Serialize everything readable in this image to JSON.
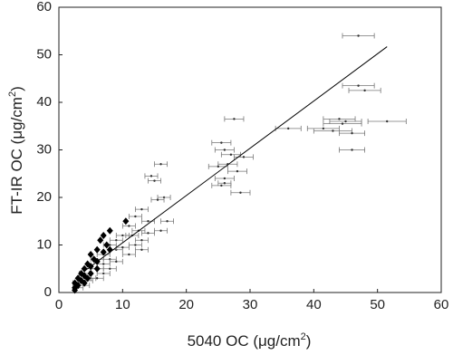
{
  "chart_data": {
    "type": "scatter",
    "x_label": {
      "text": "5040 OC (μg/cm",
      "sup": "2",
      "end": ")"
    },
    "y_label": {
      "text": "FT-IR OC (μg/cm",
      "sup": "2",
      "end": ")"
    },
    "xlim": [
      0,
      60
    ],
    "ylim": [
      0,
      60
    ],
    "xticks": [
      0,
      10,
      20,
      30,
      40,
      50,
      60
    ],
    "yticks": [
      0,
      10,
      20,
      30,
      40,
      50,
      60
    ],
    "grid": false,
    "series": [
      {
        "marker": "dot",
        "color": "#333333",
        "x": [
          47,
          47,
          48,
          44,
          44.5,
          45,
          51.5,
          41.5,
          43,
          46,
          46,
          36,
          27.5,
          25.5,
          26,
          27,
          29,
          26.5,
          25,
          28,
          26,
          28.5,
          25.5,
          26,
          16,
          14.5,
          15,
          16.5,
          15.5,
          13,
          12,
          14,
          17,
          11,
          12.5,
          10,
          9,
          11.5,
          14,
          16,
          8,
          9,
          7,
          10,
          12,
          13,
          6,
          8,
          5,
          6,
          7,
          4,
          5,
          3,
          4,
          3,
          6,
          8,
          11,
          13,
          7,
          9,
          4.5
        ],
        "values": [
          54,
          43.5,
          42.5,
          36.5,
          35.5,
          36,
          36,
          34.5,
          34,
          33.5,
          30,
          34.5,
          36.5,
          31.5,
          30,
          29,
          28.5,
          27,
          26.5,
          25.5,
          24,
          21,
          22.5,
          23,
          27,
          24.5,
          23.5,
          20,
          19.5,
          17.5,
          16,
          15,
          15,
          14,
          13,
          12,
          11,
          12,
          12.5,
          13,
          10,
          9,
          8,
          9.5,
          10,
          11,
          7,
          7,
          5,
          5,
          6,
          4,
          3,
          2,
          1.5,
          1,
          3,
          5,
          8,
          9,
          4,
          6.5,
          2.5
        ],
        "xerr": [
          2.5,
          2.5,
          2.5,
          2.5,
          3,
          2.5,
          3,
          2.5,
          3,
          2,
          2,
          2,
          1.5,
          1.5,
          1.5,
          1.5,
          1.5,
          1.5,
          1.5,
          1.5,
          1.5,
          1.5,
          1.5,
          1,
          1,
          1,
          1,
          1,
          1,
          1,
          1,
          1,
          1,
          1,
          1,
          1,
          1,
          1,
          1,
          1,
          1,
          1,
          1,
          1,
          1,
          1,
          1,
          1,
          1,
          1,
          1,
          0.8,
          0.8,
          0.8,
          0.8,
          0.8,
          1,
          1,
          1,
          1,
          1,
          1,
          0.8
        ]
      },
      {
        "marker": "diamond",
        "color": "#000000",
        "x": [
          10.5,
          8,
          7,
          6.5,
          7.5,
          6,
          5,
          5.5,
          6,
          4.5,
          5,
          4,
          3.5,
          4,
          3,
          3.5,
          2.5,
          3,
          2.5,
          2.5,
          4,
          5,
          6,
          7,
          8,
          4.5
        ],
        "values": [
          15,
          13,
          12,
          11,
          10,
          9,
          8,
          7,
          6.5,
          6,
          5.5,
          5,
          4,
          3.5,
          3,
          2.5,
          2,
          1.5,
          1,
          0.5,
          2,
          4,
          5,
          8.5,
          9,
          3
        ]
      },
      {
        "marker": "line",
        "color": "#000000",
        "x": [
          4,
          51.5
        ],
        "values": [
          4.5,
          51.7
        ]
      }
    ]
  }
}
